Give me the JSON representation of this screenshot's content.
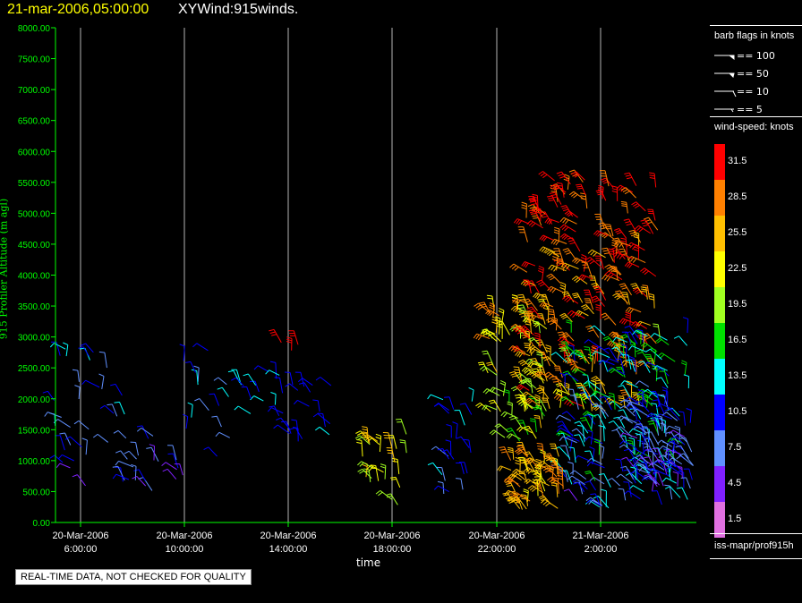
{
  "header": {
    "date_title": "21-mar-2006,05:00:00",
    "product_title": "XYWind:915winds."
  },
  "chart_data": {
    "type": "wind-barb-time-height",
    "ylabel": "915 Profiler Altitude (m agl)",
    "xlabel": "time",
    "ylim": [
      0,
      8000
    ],
    "y_ticks": [
      "0.00",
      "500.00",
      "1000.00",
      "1500.00",
      "2000.00",
      "2500.00",
      "3000.00",
      "3500.00",
      "4000.00",
      "4500.00",
      "5000.00",
      "5500.00",
      "6000.00",
      "6500.00",
      "7000.00",
      "7500.00",
      "8000.00"
    ],
    "x_ticks": [
      {
        "date": "20-Mar-2006",
        "time": "6:00:00"
      },
      {
        "date": "20-Mar-2006",
        "time": "10:00:00"
      },
      {
        "date": "20-Mar-2006",
        "time": "14:00:00"
      },
      {
        "date": "20-Mar-2006",
        "time": "18:00:00"
      },
      {
        "date": "20-Mar-2006",
        "time": "22:00:00"
      },
      {
        "date": "21-Mar-2006",
        "time": "2:00:00"
      }
    ],
    "grid": "vertical lines at x ticks",
    "axis_color": "#00ff00",
    "barb_legend": {
      "title": "barb flags in knots",
      "entries": [
        "== 100",
        "== 50",
        "== 10",
        "== 5"
      ]
    },
    "speed_scale": {
      "title": "wind-speed: knots",
      "bins": [
        {
          "label": "31.5",
          "color": "#ff0000"
        },
        {
          "label": "28.5",
          "color": "#ff8000"
        },
        {
          "label": "25.5",
          "color": "#ffbf00"
        },
        {
          "label": "22.5",
          "color": "#ffff00"
        },
        {
          "label": "19.5",
          "color": "#a0ff20"
        },
        {
          "label": "16.5",
          "color": "#00e000"
        },
        {
          "label": "13.5",
          "color": "#00ffff"
        },
        {
          "label": "10.5",
          "color": "#0000ff"
        },
        {
          "label": "7.5",
          "color": "#6090ff"
        },
        {
          "label": "4.5",
          "color": "#8020ff"
        },
        {
          "label": "1.5",
          "color": "#e070e0"
        }
      ]
    },
    "source": "iss-mapr/prof915h"
  },
  "footer": {
    "disclaimer": "REAL-TIME DATA, NOT CHECKED FOR QUALITY"
  }
}
